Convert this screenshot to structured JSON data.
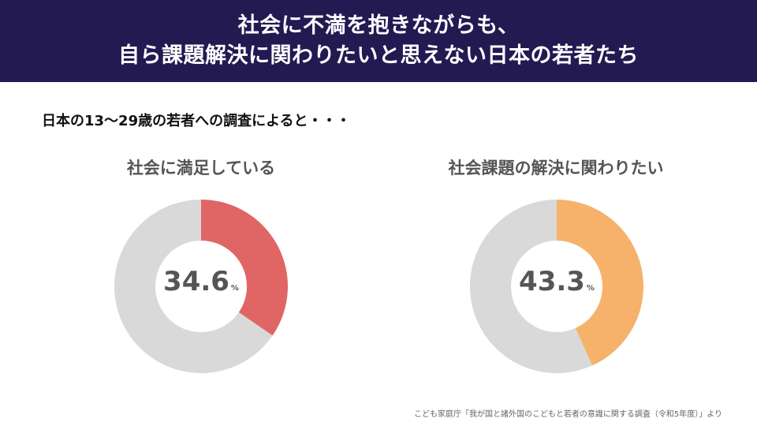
{
  "header": {
    "line1": "社会に不満を抱きながらも、",
    "line2": "自ら課題解決に関わりたいと思えない日本の若者たち"
  },
  "intro": "日本の13〜29歳の若者への調査によると・・・",
  "source": "こども家庭庁「我が国と諸外国のこどもと若者の意識に関する調査（令和5年度）」より",
  "colors": {
    "header_bg": "#231a52",
    "remainder": "#d9d9d9",
    "red": "#e06666",
    "orange": "#f6b26b"
  },
  "chart_data": [
    {
      "type": "pie",
      "title": "社会に満足している",
      "center_label": "34.6",
      "unit": "%",
      "values": [
        34.6,
        65.4
      ],
      "colors": [
        "#e06666",
        "#d9d9d9"
      ]
    },
    {
      "type": "pie",
      "title": "社会課題の解決に関わりたい",
      "center_label": "43.3",
      "unit": "%",
      "values": [
        43.3,
        56.7
      ],
      "colors": [
        "#f6b26b",
        "#d9d9d9"
      ]
    }
  ]
}
